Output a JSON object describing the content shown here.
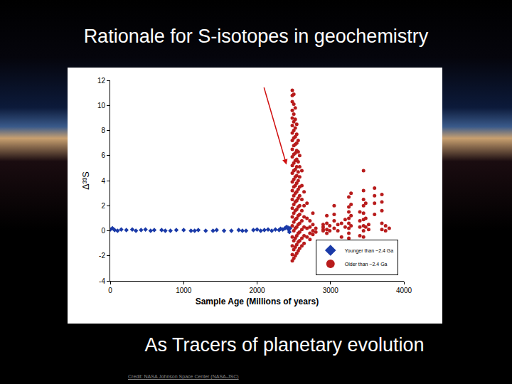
{
  "chart_data": {
    "type": "scatter",
    "title": "Rationale for S-isotopes in geochemistry",
    "subtitle": "As Tracers of planetary evolution",
    "annotations": [
      "Credit: NASA Johnson Space Center (NASA-JSC)"
    ],
    "x_label": "Sample Age (Millions of years)",
    "y_label": "Δ³³S",
    "xlim": [
      0,
      4000
    ],
    "xticks": [
      0,
      1000,
      2000,
      3000,
      4000
    ],
    "ylim": [
      -4,
      12
    ],
    "yticks": [
      -4,
      -2,
      0,
      2,
      4,
      6,
      8,
      10,
      12
    ],
    "grid": false,
    "legend": "bottom right",
    "series": [
      {
        "name": "Younger than ~2.4 Ga",
        "color": "#1a3aa8",
        "marker": "diamond",
        "x": [
          0,
          30,
          60,
          100,
          150,
          220,
          300,
          350,
          420,
          480,
          550,
          600,
          700,
          750,
          820,
          900,
          1000,
          1100,
          1150,
          1200,
          1300,
          1400,
          1450,
          1550,
          1650,
          1750,
          1800,
          1850,
          1950,
          2000,
          2050,
          2100,
          2150,
          2200,
          2250,
          2300,
          2320,
          2350,
          2380,
          2400,
          2420,
          2430,
          2440,
          2450
        ],
        "values": [
          0.1,
          0.2,
          0.05,
          0,
          0.1,
          0.05,
          0.1,
          0,
          0.05,
          0.1,
          0,
          0.05,
          0.05,
          0,
          0,
          0.05,
          0.05,
          0,
          0,
          0.05,
          0,
          0,
          0.05,
          0,
          0,
          0.05,
          0,
          0,
          0.05,
          0.1,
          0,
          0.05,
          0.1,
          0,
          0.1,
          0.05,
          0.15,
          0.1,
          0.2,
          0.3,
          0.25,
          0.1,
          -0.1,
          0.2
        ]
      },
      {
        "name": "Older than ~2.4 Ga",
        "color": "#b81c1c",
        "marker": "circle",
        "x": [
          2480,
          2480,
          2480,
          2480,
          2480,
          2480,
          2480,
          2480,
          2480,
          2480,
          2480,
          2480,
          2480,
          2480,
          2480,
          2480,
          2480,
          2480,
          2480,
          2480,
          2480,
          2480,
          2500,
          2500,
          2500,
          2500,
          2500,
          2500,
          2500,
          2500,
          2500,
          2500,
          2500,
          2500,
          2500,
          2500,
          2500,
          2500,
          2500,
          2500,
          2500,
          2500,
          2520,
          2520,
          2520,
          2520,
          2520,
          2520,
          2520,
          2520,
          2520,
          2520,
          2520,
          2520,
          2520,
          2520,
          2520,
          2520,
          2520,
          2520,
          2540,
          2540,
          2540,
          2540,
          2540,
          2540,
          2540,
          2540,
          2540,
          2540,
          2540,
          2540,
          2540,
          2540,
          2540,
          2540,
          2560,
          2560,
          2560,
          2560,
          2560,
          2560,
          2560,
          2560,
          2560,
          2560,
          2560,
          2560,
          2560,
          2580,
          2580,
          2580,
          2580,
          2580,
          2580,
          2580,
          2580,
          2580,
          2580,
          2580,
          2610,
          2610,
          2610,
          2610,
          2610,
          2610,
          2610,
          2610,
          2640,
          2640,
          2640,
          2640,
          2640,
          2640,
          2680,
          2680,
          2680,
          2680,
          2720,
          2720,
          2720,
          2720,
          2760,
          2760,
          2760,
          2760,
          2800,
          2800,
          2900,
          2900,
          2900,
          2900,
          2950,
          2950,
          2950,
          2950,
          2990,
          2990,
          3050,
          3050,
          3050,
          3050,
          3100,
          3100,
          3150,
          3150,
          3200,
          3200,
          3250,
          3250,
          3250,
          3250,
          3250,
          3250,
          3250,
          3250,
          3280,
          3280,
          3280,
          3280,
          3400,
          3400,
          3400,
          3400,
          3450,
          3450,
          3450,
          3450,
          3450,
          3450,
          3450,
          3450,
          3450,
          3450,
          3450,
          3480,
          3480,
          3480,
          3520,
          3520,
          3600,
          3600,
          3600,
          3600,
          3700,
          3700,
          3700,
          3700,
          3700,
          3750,
          3750,
          3800
        ],
        "values": [
          11.2,
          10.8,
          10.3,
          9.6,
          9.0,
          8.4,
          7.8,
          7.2,
          6.5,
          5.9,
          5.2,
          4.6,
          3.9,
          3.2,
          2.5,
          1.8,
          1.1,
          0.4,
          -0.5,
          -1.2,
          -1.9,
          -2.4,
          10.9,
          10.1,
          9.3,
          8.7,
          8.0,
          7.4,
          6.8,
          6.1,
          5.4,
          4.8,
          4.1,
          3.5,
          2.8,
          2.1,
          1.4,
          0.7,
          0,
          -0.8,
          -1.5,
          -2.2,
          9.8,
          8.9,
          8.2,
          7.5,
          6.9,
          6.2,
          5.6,
          4.9,
          4.3,
          3.6,
          3.0,
          2.3,
          1.6,
          0.9,
          0.2,
          -0.6,
          -1.3,
          -2.0,
          8.5,
          7.7,
          7.0,
          6.4,
          5.7,
          5.1,
          4.4,
          3.8,
          3.1,
          2.4,
          1.7,
          1.0,
          0.3,
          -0.4,
          -1.1,
          -1.8,
          7.2,
          6.3,
          5.5,
          4.7,
          4.0,
          3.3,
          2.6,
          1.9,
          1.2,
          0.5,
          -0.2,
          -0.9,
          -1.6,
          6.0,
          5.1,
          4.3,
          3.5,
          2.8,
          2.0,
          1.3,
          0.6,
          -0.1,
          -0.8,
          -1.4,
          4.8,
          3.6,
          2.5,
          1.6,
          0.8,
          0.1,
          -0.6,
          -1.2,
          3.1,
          2.0,
          1.1,
          0.3,
          -0.4,
          -1.0,
          2.2,
          1.0,
          0.2,
          -0.5,
          0.8,
          0.3,
          -0.2,
          -0.7,
          1.4,
          0.5,
          0,
          -0.3,
          0.2,
          -0.1,
          0.1,
          0.3,
          0.5,
          0,
          1.2,
          0.6,
          0.1,
          -0.2,
          0.4,
          0,
          2.0,
          1.3,
          0.8,
          0.2,
          0.5,
          0,
          0.6,
          -0.5,
          0.3,
          0.9,
          2.7,
          1.9,
          1.5,
          1.0,
          0.6,
          0.2,
          -0.2,
          -0.6,
          3.0,
          2.1,
          1.2,
          0.4,
          1.5,
          0.8,
          0.3,
          -0.4,
          4.8,
          3.2,
          2.5,
          2.0,
          1.4,
          0.9,
          0.4,
          0,
          -0.5,
          -1.0,
          -1.5,
          2.2,
          1.0,
          0.3,
          0.5,
          0.1,
          3.4,
          2.8,
          2.2,
          1.3,
          2.9,
          2.3,
          1.6,
          0.6,
          0.1,
          0.4,
          0,
          0.2
        ]
      }
    ]
  }
}
